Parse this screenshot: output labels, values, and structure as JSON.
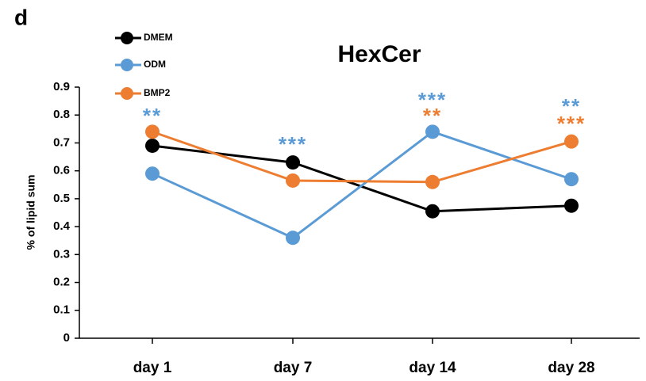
{
  "chart_data": {
    "type": "line",
    "panel_label": "d",
    "title": "HexCer",
    "y_label": "% of lipid sum",
    "categories": [
      "day 1",
      "day 7",
      "day 14",
      "day 28"
    ],
    "series": [
      {
        "name": "DMEM",
        "color": "#000000",
        "values": [
          0.69,
          0.63,
          0.455,
          0.475
        ]
      },
      {
        "name": "ODM",
        "color": "#5b9bd5",
        "values": [
          0.59,
          0.36,
          0.74,
          0.57
        ]
      },
      {
        "name": "BMP2",
        "color": "#ed7d31",
        "values": [
          0.74,
          0.565,
          0.56,
          0.705
        ]
      }
    ],
    "ylim": [
      0,
      0.9
    ],
    "yticks": [
      0,
      0.1,
      0.2,
      0.3,
      0.4,
      0.5,
      0.6,
      0.7,
      0.8,
      0.9
    ],
    "annotations": [
      {
        "text": "**",
        "color": "#5b9bd5"
      },
      {
        "text": "***",
        "color": "#5b9bd5"
      },
      {
        "text": "***",
        "color": "#5b9bd5"
      },
      {
        "text": "**",
        "color": "#ed7d31"
      },
      {
        "text": "**",
        "color": "#5b9bd5"
      },
      {
        "text": "***",
        "color": "#ed7d31"
      }
    ]
  }
}
